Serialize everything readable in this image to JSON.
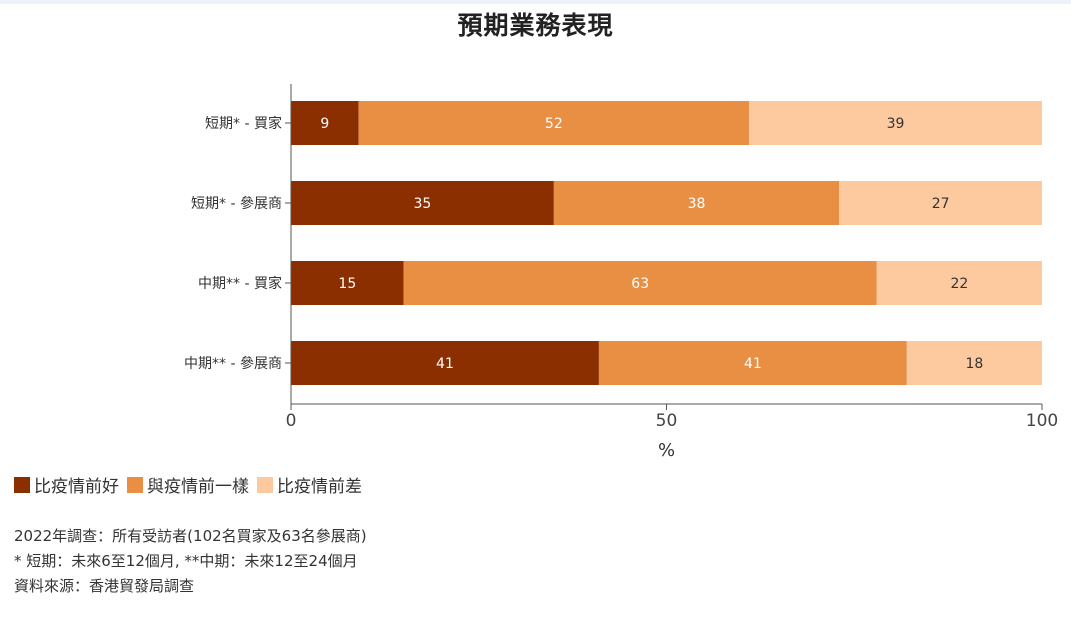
{
  "title": "預期業務表現",
  "chart_data": {
    "type": "bar",
    "orientation": "horizontal",
    "stacked": true,
    "categories": [
      "短期* - 買家",
      "短期* - 參展商",
      "中期** - 買家",
      "中期** - 參展商"
    ],
    "series": [
      {
        "name": "比疫情前好",
        "color": "#8b2e00",
        "label_color": "#ffffff",
        "values": [
          9,
          35,
          15,
          41
        ]
      },
      {
        "name": "與疫情前一樣",
        "color": "#e88f44",
        "label_color": "#ffffff",
        "values": [
          52,
          38,
          63,
          41
        ]
      },
      {
        "name": "比疫情前差",
        "color": "#fdcaa0",
        "label_color": "#333333",
        "values": [
          39,
          27,
          22,
          18
        ]
      }
    ],
    "xlim": [
      0,
      100
    ],
    "xticks": [
      "0",
      "50",
      "100"
    ],
    "xlabel": "%",
    "ylabel": "",
    "grid": false,
    "legend_position": "bottom-left"
  },
  "legend": [
    {
      "label": "比疫情前好",
      "color": "#8b2e00"
    },
    {
      "label": "與疫情前一樣",
      "color": "#e88f44"
    },
    {
      "label": "比疫情前差",
      "color": "#fdcaa0"
    }
  ],
  "notes": [
    "2022年調查：所有受訪者(102名買家及63名參展商)",
    "* 短期：未來6至12個月, **中期：未來12至24個月",
    "資料來源：香港貿發局調查"
  ]
}
